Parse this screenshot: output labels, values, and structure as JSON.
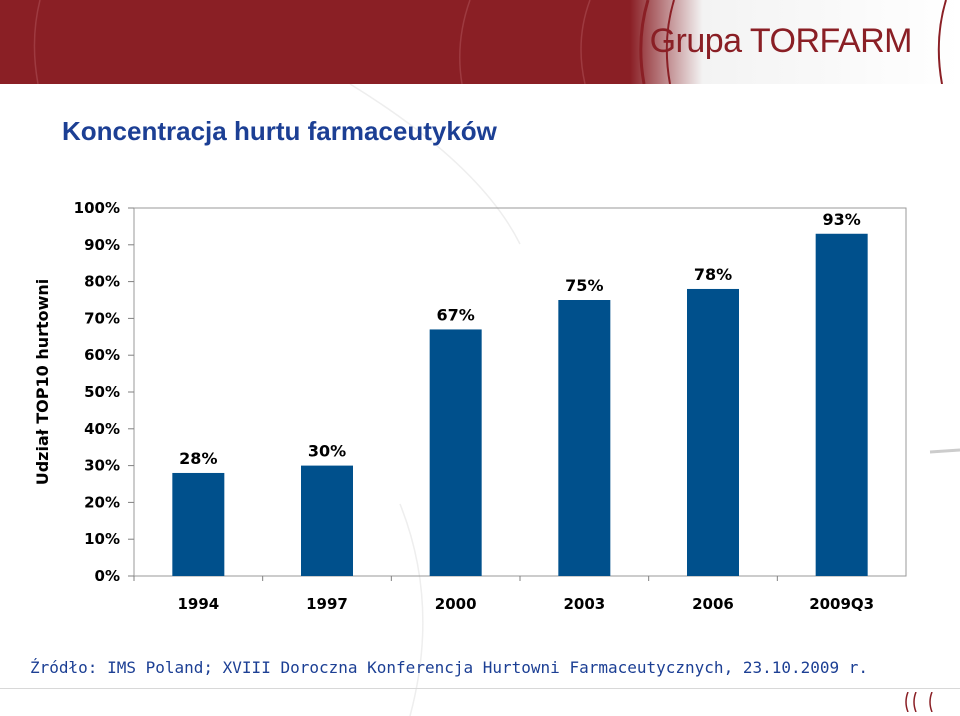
{
  "header": {
    "logo_text": "Grupa TORFARM",
    "brand_color": "#8a1f25"
  },
  "slide": {
    "title": "Koncentracja hurtu farmaceutyków"
  },
  "chart_data": {
    "type": "bar",
    "categories": [
      "1994",
      "1997",
      "2000",
      "2003",
      "2006",
      "2009Q3"
    ],
    "values": [
      28,
      30,
      67,
      75,
      78,
      93
    ],
    "data_labels": [
      "28%",
      "30%",
      "67%",
      "75%",
      "78%",
      "93%"
    ],
    "ylabel": "Udział TOP10 hurtowni",
    "ylim": [
      0,
      100
    ],
    "yticks": [
      0,
      10,
      20,
      30,
      40,
      50,
      60,
      70,
      80,
      90,
      100
    ],
    "ytick_labels": [
      "0%",
      "10%",
      "20%",
      "30%",
      "40%",
      "50%",
      "60%",
      "70%",
      "80%",
      "90%",
      "100%"
    ],
    "grid": false,
    "bar_color": "#00508c",
    "legend": "none"
  },
  "footer": {
    "source": "Źródło: IMS Poland; XVIII Doroczna Konferencja Hurtowni Farmaceutycznych, 23.10.2009 r."
  }
}
